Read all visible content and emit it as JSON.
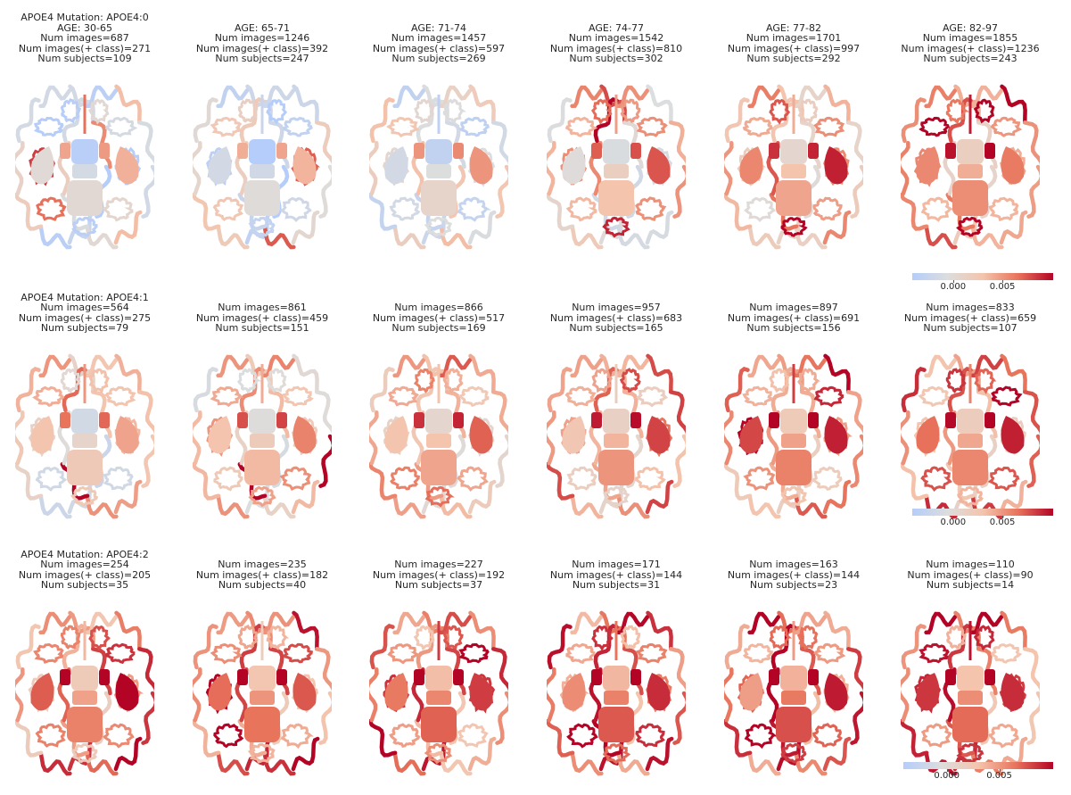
{
  "figure": {
    "rows": [
      {
        "panels": [
          {
            "lines": [
              "APOE4 Mutation: APOE4:0",
              "AGE: 30-65",
              "Num images=687",
              "Num images(+ class)=271",
              "Num subjects=109"
            ],
            "level": 0.25
          },
          {
            "lines": [
              "AGE: 65-71",
              "Num images=1246",
              "Num images(+ class)=392",
              "Num subjects=247"
            ],
            "level": 0.22
          },
          {
            "lines": [
              "AGE: 71-74",
              "Num images=1457",
              "Num images(+ class)=597",
              "Num subjects=269"
            ],
            "level": 0.3
          },
          {
            "lines": [
              "AGE: 74-77",
              "Num images=1542",
              "Num images(+ class)=810",
              "Num subjects=302"
            ],
            "level": 0.45
          },
          {
            "lines": [
              "AGE: 77-82",
              "Num images=1701",
              "Num images(+ class)=997",
              "Num subjects=292"
            ],
            "level": 0.55
          },
          {
            "lines": [
              "AGE: 82-97",
              "Num images=1855",
              "Num images(+ class)=1236",
              "Num subjects=243"
            ],
            "level": 0.62
          }
        ]
      },
      {
        "panels": [
          {
            "lines": [
              "APOE4 Mutation: APOE4:1",
              "Num images=564",
              "Num images(+ class)=275",
              "Num subjects=79"
            ],
            "level": 0.4
          },
          {
            "lines": [
              "Num images=861",
              "Num images(+ class)=459",
              "Num subjects=151"
            ],
            "level": 0.48
          },
          {
            "lines": [
              "Num images=866",
              "Num images(+ class)=517",
              "Num subjects=169"
            ],
            "level": 0.55
          },
          {
            "lines": [
              "Num images=957",
              "Num images(+ class)=683",
              "Num subjects=165"
            ],
            "level": 0.6
          },
          {
            "lines": [
              "Num images=897",
              "Num images(+ class)=691",
              "Num subjects=156"
            ],
            "level": 0.66
          },
          {
            "lines": [
              "Num images=833",
              "Num images(+ class)=659",
              "Num subjects=107"
            ],
            "level": 0.64
          }
        ]
      },
      {
        "panels": [
          {
            "lines": [
              "APOE4 Mutation: APOE4:2",
              "Num images=254",
              "Num images(+ class)=205",
              "Num subjects=35"
            ],
            "level": 0.66
          },
          {
            "lines": [
              "Num images=235",
              "Num images(+ class)=182",
              "Num subjects=40"
            ],
            "level": 0.7
          },
          {
            "lines": [
              "Num images=227",
              "Num images(+ class)=192",
              "Num subjects=37"
            ],
            "level": 0.74
          },
          {
            "lines": [
              "Num images=171",
              "Num images(+ class)=144",
              "Num subjects=31"
            ],
            "level": 0.76
          },
          {
            "lines": [
              "Num images=163",
              "Num images(+ class)=144",
              "Num subjects=23"
            ],
            "level": 0.78
          },
          {
            "lines": [
              "Num images=110",
              "Num images(+ class)=90",
              "Num subjects=14"
            ],
            "level": 0.72
          }
        ]
      }
    ],
    "colorbar": {
      "ticks": [
        {
          "label": "0.000",
          "fraction": 0.29
        },
        {
          "label": "0.005",
          "fraction": 0.64
        }
      ],
      "colors": [
        "#b5cdfa",
        "#dcdddd",
        "#f4c4ad",
        "#e8745c",
        "#b40426"
      ]
    }
  }
}
